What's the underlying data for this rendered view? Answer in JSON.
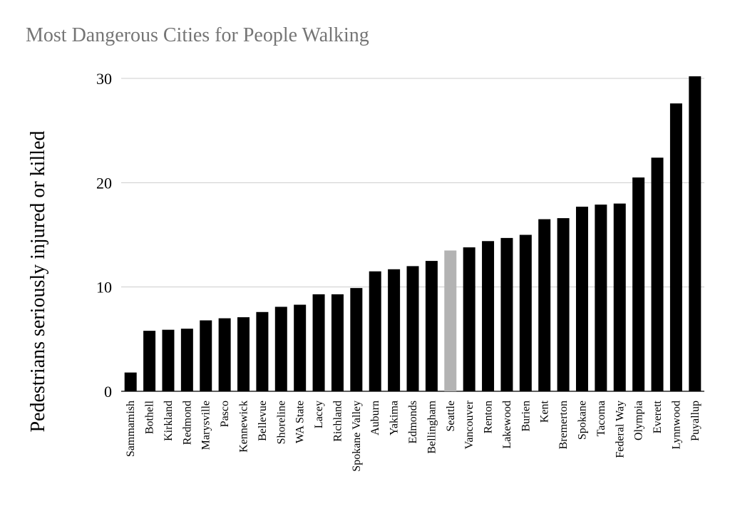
{
  "chart_data": {
    "type": "bar",
    "title": "Most Dangerous Cities for People Walking",
    "xlabel": "",
    "ylabel": "Pedestrians seriously injured or killed",
    "ylim": [
      0,
      30
    ],
    "yticks": [
      0,
      10,
      20,
      30
    ],
    "grid": true,
    "categories": [
      "Sammamish",
      "Bothell",
      "Kirkland",
      "Redmond",
      "Marysville",
      "Pasco",
      "Kennewick",
      "Bellevue",
      "Shoreline",
      "WA State",
      "Lacey",
      "Richland",
      "Spokane Valley",
      "Auburn",
      "Yakima",
      "Edmonds",
      "Bellingham",
      "Seattle",
      "Vancouver",
      "Renton",
      "Lakewood",
      "Burien",
      "Kent",
      "Bremerton",
      "Spokane",
      "Tacoma",
      "Federal Way",
      "Olympia",
      "Everett",
      "Lynnwood",
      "Puyallup"
    ],
    "values": [
      1.8,
      5.8,
      5.9,
      6.0,
      6.8,
      7.0,
      7.1,
      7.6,
      8.1,
      8.3,
      9.3,
      9.3,
      9.9,
      11.5,
      11.7,
      12.0,
      12.5,
      13.5,
      13.8,
      14.4,
      14.7,
      15.0,
      16.5,
      16.6,
      17.7,
      17.9,
      18.0,
      20.5,
      22.4,
      27.6,
      30.2
    ],
    "colors": {
      "default": "#000000",
      "highlight": "#b3b3b3",
      "grid": "#cccccc",
      "title": "#757575"
    },
    "highlight_category": "Seattle"
  }
}
